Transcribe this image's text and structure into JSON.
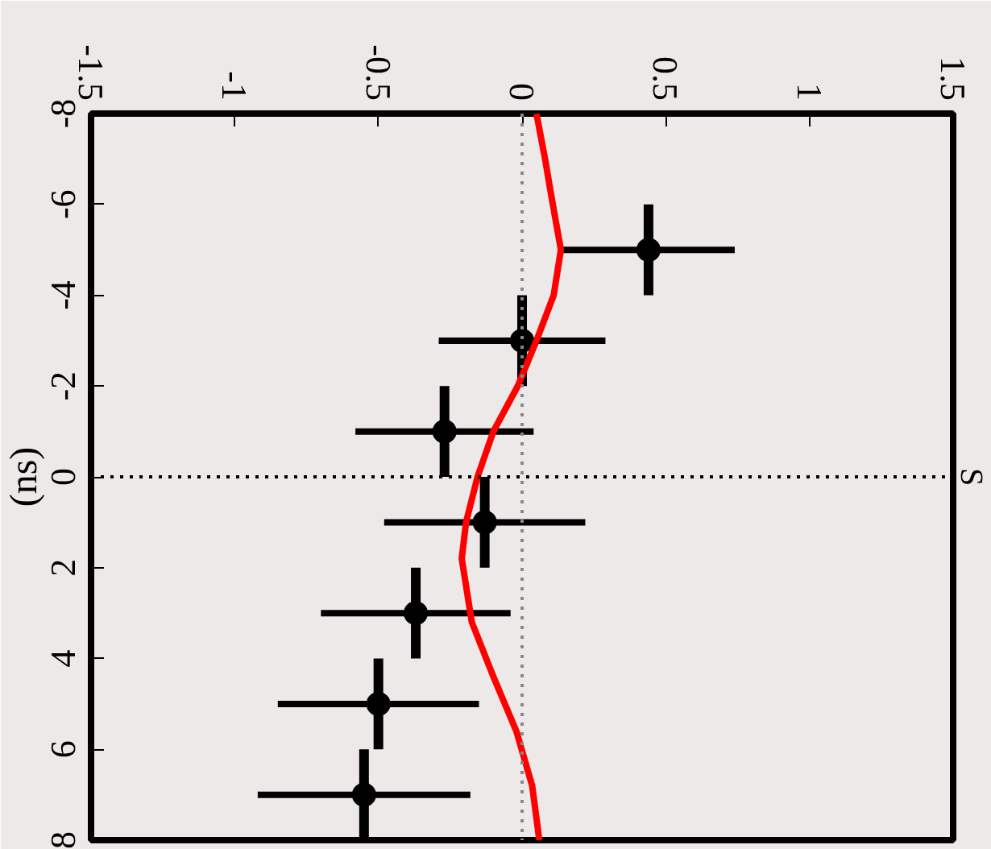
{
  "chart_data": {
    "type": "scatter",
    "title": "S",
    "ylabel": "(ns)",
    "xlim": [
      -1.5,
      1.5
    ],
    "xticks": [
      -1.5,
      -1,
      -0.5,
      0,
      0.5,
      1,
      1.5
    ],
    "ylim": [
      8,
      -8
    ],
    "yticks": [
      -8,
      -6,
      -4,
      -2,
      0,
      2,
      4,
      6,
      8
    ],
    "series": [
      {
        "color": "#000000",
        "x": [
          0.44,
          0.0,
          -0.27,
          -0.13,
          -0.37,
          -0.5,
          -0.55
        ],
        "values": [
          -5,
          -3,
          -1,
          1,
          3,
          5,
          7
        ],
        "errors": [
          1,
          1,
          1,
          1,
          1,
          1,
          1
        ],
        "xerrors": [
          0.3,
          0.29,
          0.31,
          0.35,
          0.33,
          0.35,
          0.37
        ],
        "marker": "circle"
      },
      {
        "type": "line",
        "color": "#ff0000",
        "x": [
          0.05,
          0.08,
          0.1,
          0.135,
          0.11,
          0.05,
          -0.015,
          -0.1,
          -0.155,
          -0.195,
          -0.21,
          -0.175,
          -0.1,
          -0.02,
          0.035,
          0.06
        ],
        "values": [
          -8,
          -7,
          -6.25,
          -5,
          -4,
          -3,
          -2,
          -1,
          0,
          1,
          1.8,
          3.2,
          4.4,
          5.6,
          6.8,
          8
        ],
        "line_style": "solid"
      }
    ],
    "ref_lines": [
      {
        "axis": "y",
        "value": 0,
        "color": "#000000",
        "line_style": "dotted"
      },
      {
        "axis": "x",
        "value": 0,
        "color": "#888888",
        "line_style": "dotted"
      }
    ],
    "grid": false
  }
}
